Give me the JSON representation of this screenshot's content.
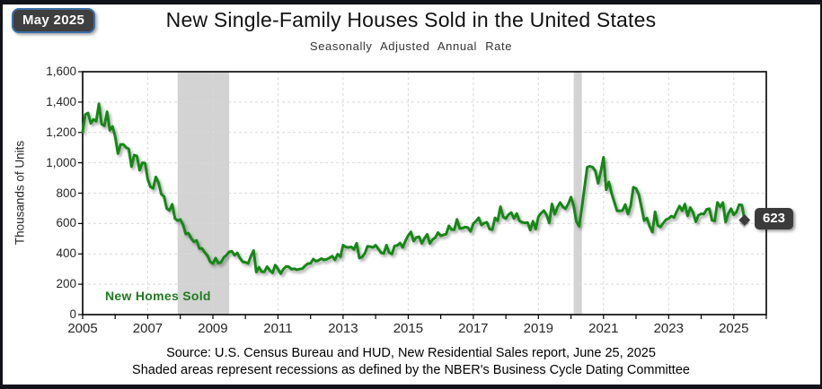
{
  "badge": {
    "label": "May 2025"
  },
  "title": "New Single-Family Houses Sold in the United States",
  "subtitle": "Seasonally Adjusted Annual Rate",
  "legend_label": "New Homes Sold",
  "callout_value": "623",
  "footer": {
    "line1": "Source:  U.S. Census Bureau and HUD, New Residential Sales report, June 25, 2025",
    "line2": "Shaded areas represent recessions as defined by the NBER's Business Cycle Dating Committee"
  },
  "colors": {
    "line_green": "#188718",
    "legend_green": "#1f7a1f",
    "recession_gray": "#d3d3d3",
    "gridline": "#d9d9d9",
    "plot_border": "#000000",
    "badge_fill": "#3f3f3f",
    "badge_border": "#3a6ea5",
    "callout_fill": "#3b3b3b",
    "marker": "#3a3a3a",
    "frame": "#12121a"
  },
  "chart_data": {
    "type": "line",
    "title": "New Single-Family Houses Sold in the United States",
    "subtitle": "Seasonally Adjusted Annual Rate",
    "ylabel": "Thousands of Units",
    "xlabel": "",
    "ylim": [
      0,
      1600
    ],
    "ytick_step": 200,
    "ytick_labels": [
      "0",
      "200",
      "400",
      "600",
      "800",
      "1,000",
      "1,200",
      "1,400",
      "1,600"
    ],
    "xlim": [
      2005,
      2026
    ],
    "xtick_labels": [
      "2005",
      "2007",
      "2009",
      "2011",
      "2013",
      "2015",
      "2017",
      "2019",
      "2021",
      "2023",
      "2025"
    ],
    "xticks": [
      2005,
      2007,
      2009,
      2011,
      2013,
      2015,
      2017,
      2019,
      2021,
      2023,
      2025
    ],
    "minor_xtick_every_years": 1,
    "grid": "both-dashed",
    "recessions": [
      [
        2007.917,
        2009.5
      ],
      [
        2020.083,
        2020.333
      ]
    ],
    "frequency": "monthly",
    "start_year": 2005,
    "start_month": 1,
    "end_label": "May 2025",
    "last_point": {
      "date": "May 2025",
      "value": 623
    },
    "series": [
      {
        "name": "New Homes Sold",
        "values": [
          1203,
          1319,
          1328,
          1260,
          1286,
          1274,
          1389,
          1255,
          1244,
          1336,
          1214,
          1239,
          1174,
          1061,
          1121,
          1121,
          1101,
          1091,
          975,
          1051,
          1045,
          952,
          1000,
          998,
          891,
          842,
          832,
          907,
          866,
          793,
          778,
          699,
          686,
          727,
          634,
          619,
          627,
          593,
          531,
          536,
          502,
          480,
          489,
          435,
          436,
          410,
          389,
          349,
          336,
          372,
          339,
          344,
          376,
          392,
          413,
          417,
          391,
          406,
          371,
          348,
          345,
          337,
          384,
          422,
          280,
          312,
          283,
          282,
          316,
          291,
          275,
          326,
          301,
          270,
          300,
          317,
          315,
          299,
          302,
          296,
          300,
          303,
          321,
          336,
          338,
          366,
          352,
          358,
          369,
          360,
          365,
          374,
          385,
          361,
          398,
          381,
          458,
          445,
          443,
          446,
          429,
          470,
          373,
          379,
          403,
          450,
          448,
          442,
          457,
          432,
          408,
          403,
          457,
          408,
          399,
          453,
          455,
          472,
          443,
          487,
          521,
          545,
          485,
          508,
          513,
          469,
          502,
          529,
          468,
          495,
          508,
          540,
          519,
          525,
          531,
          585,
          560,
          559,
          627,
          567,
          570,
          577,
          573,
          548,
          599,
          615,
          638,
          590,
          603,
          608,
          563,
          559,
          637,
          618,
          711,
          643,
          633,
          659,
          672,
          633,
          666,
          618,
          608,
          604,
          607,
          557,
          615,
          564,
          644,
          669,
          685,
          656,
          604,
          729,
          661,
          706,
          738,
          710,
          697,
          730,
          774,
          716,
          612,
          582,
          704,
          840,
          972,
          977,
          971,
          945,
          865,
          943,
          1036,
          823,
          873,
          796,
          740,
          683,
          683,
          686,
          725,
          662,
          717,
          839,
          831,
          790,
          707,
          619,
          636,
          582,
          543,
          677,
          588,
          577,
          602,
          625,
          633,
          649,
          640,
          679,
          715,
          684,
          728,
          650,
          705,
          672,
          611,
          654,
          664,
          662,
          693,
          698,
          621,
          617,
          739,
          709,
          738,
          610,
          664,
          698,
          657,
          676,
          724,
          722,
          623
        ]
      }
    ]
  }
}
